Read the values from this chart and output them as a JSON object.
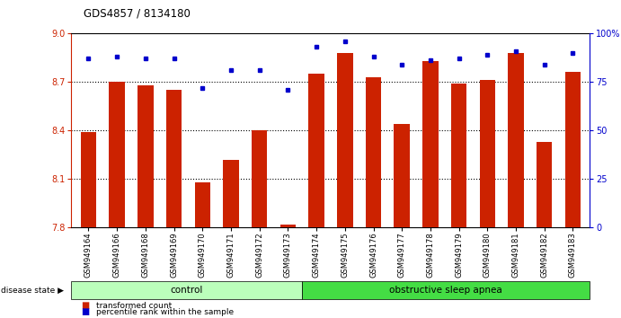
{
  "title": "GDS4857 / 8134180",
  "samples": [
    "GSM949164",
    "GSM949166",
    "GSM949168",
    "GSM949169",
    "GSM949170",
    "GSM949171",
    "GSM949172",
    "GSM949173",
    "GSM949174",
    "GSM949175",
    "GSM949176",
    "GSM949177",
    "GSM949178",
    "GSM949179",
    "GSM949180",
    "GSM949181",
    "GSM949182",
    "GSM949183"
  ],
  "bar_values": [
    8.39,
    8.7,
    8.68,
    8.65,
    8.08,
    8.22,
    8.4,
    7.82,
    8.75,
    8.88,
    8.73,
    8.44,
    8.83,
    8.69,
    8.71,
    8.88,
    8.33,
    8.76
  ],
  "percentile_values": [
    87,
    88,
    87,
    87,
    72,
    81,
    81,
    71,
    93,
    96,
    88,
    84,
    86,
    87,
    89,
    91,
    84,
    90
  ],
  "bar_color": "#cc2200",
  "dot_color": "#0000cc",
  "ylim_left": [
    7.8,
    9.0
  ],
  "ylim_right": [
    0,
    100
  ],
  "yticks_left": [
    7.8,
    8.1,
    8.4,
    8.7,
    9.0
  ],
  "yticks_right": [
    0,
    25,
    50,
    75,
    100
  ],
  "ytick_labels_right": [
    "0",
    "25",
    "50",
    "75",
    "100%"
  ],
  "control_count": 8,
  "apnea_count": 10,
  "groups": [
    {
      "label": "control",
      "color": "#bbffbb"
    },
    {
      "label": "obstructive sleep apnea",
      "color": "#44dd44"
    }
  ],
  "bar_width": 0.55,
  "background_color": "#ffffff"
}
